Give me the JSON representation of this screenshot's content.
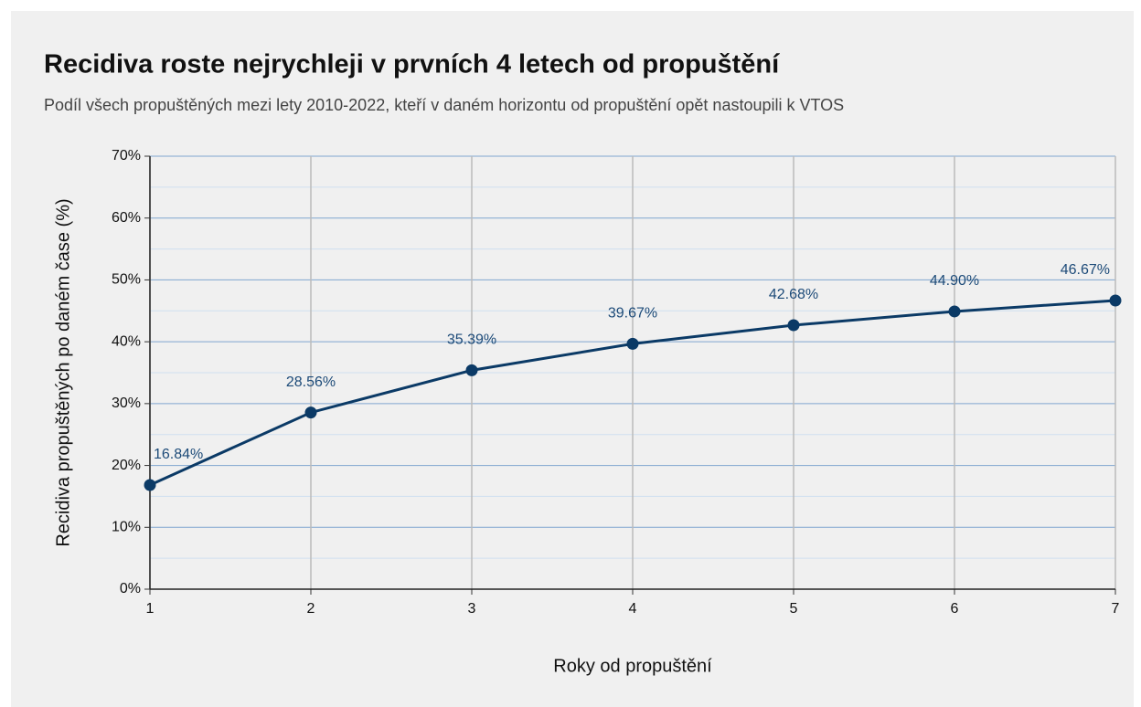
{
  "chart_data": {
    "type": "line",
    "title": "Recidiva roste nejrychleji v prvních 4 letech od propuštění",
    "subtitle": "Podíl všech propuštěných mezi lety 2010-2022, kteří v daném horizontu od propuštění opět nastoupili k VTOS",
    "x_label": "Roky od propuštění",
    "y_label": "Recidiva propuštěných po daném čase (%)",
    "x": [
      1,
      2,
      3,
      4,
      5,
      6,
      7
    ],
    "series": [
      {
        "name": "Recidiva",
        "color": "#0b3a66",
        "values": [
          16.84,
          28.56,
          35.39,
          39.67,
          42.68,
          44.9,
          46.67
        ],
        "value_labels": [
          "16.84%",
          "28.56%",
          "35.39%",
          "39.67%",
          "42.68%",
          "44.90%",
          "46.67%"
        ]
      }
    ],
    "xlim": [
      1,
      7
    ],
    "xticks": [
      1,
      2,
      3,
      4,
      5,
      6,
      7
    ],
    "ylim": [
      0,
      70
    ],
    "yticks": [
      {
        "value": 0,
        "label": "0%"
      },
      {
        "value": 10,
        "label": "10%"
      },
      {
        "value": 20,
        "label": "20%"
      },
      {
        "value": 30,
        "label": "30%"
      },
      {
        "value": 40,
        "label": "40%"
      },
      {
        "value": 50,
        "label": "50%"
      },
      {
        "value": 60,
        "label": "60%"
      },
      {
        "value": 70,
        "label": "70%"
      }
    ],
    "y_minor_ticks": [
      5,
      15,
      25,
      35,
      45,
      55,
      65
    ],
    "grid": true
  }
}
